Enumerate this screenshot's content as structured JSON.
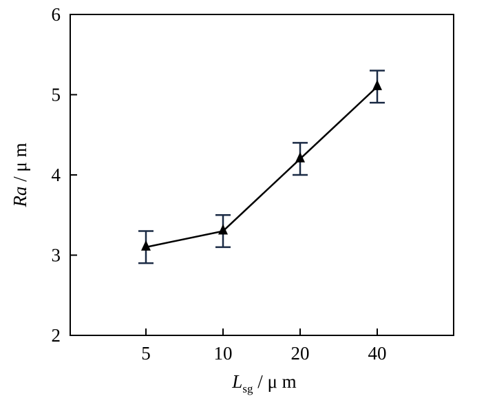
{
  "chart_data": {
    "type": "line",
    "categories": [
      "5",
      "10",
      "20",
      "40"
    ],
    "series": [
      {
        "values": [
          3.1,
          3.3,
          4.2,
          5.1
        ],
        "error": [
          [
            0.2,
            0.2
          ],
          [
            0.2,
            0.2
          ],
          [
            0.2,
            0.2
          ],
          [
            0.2,
            0.2
          ]
        ],
        "marker": "triangle",
        "color": "#000000"
      }
    ],
    "xlabel": {
      "main": "L",
      "sub": "sg",
      "unit": " / μ m"
    },
    "ylabel": {
      "main": "Ra",
      "unit": " / μ m"
    },
    "ylim": [
      2,
      6
    ],
    "yticks": [
      "2",
      "3",
      "4",
      "5",
      "6"
    ],
    "grid": false,
    "errorbar_color": "#1a2a44"
  }
}
